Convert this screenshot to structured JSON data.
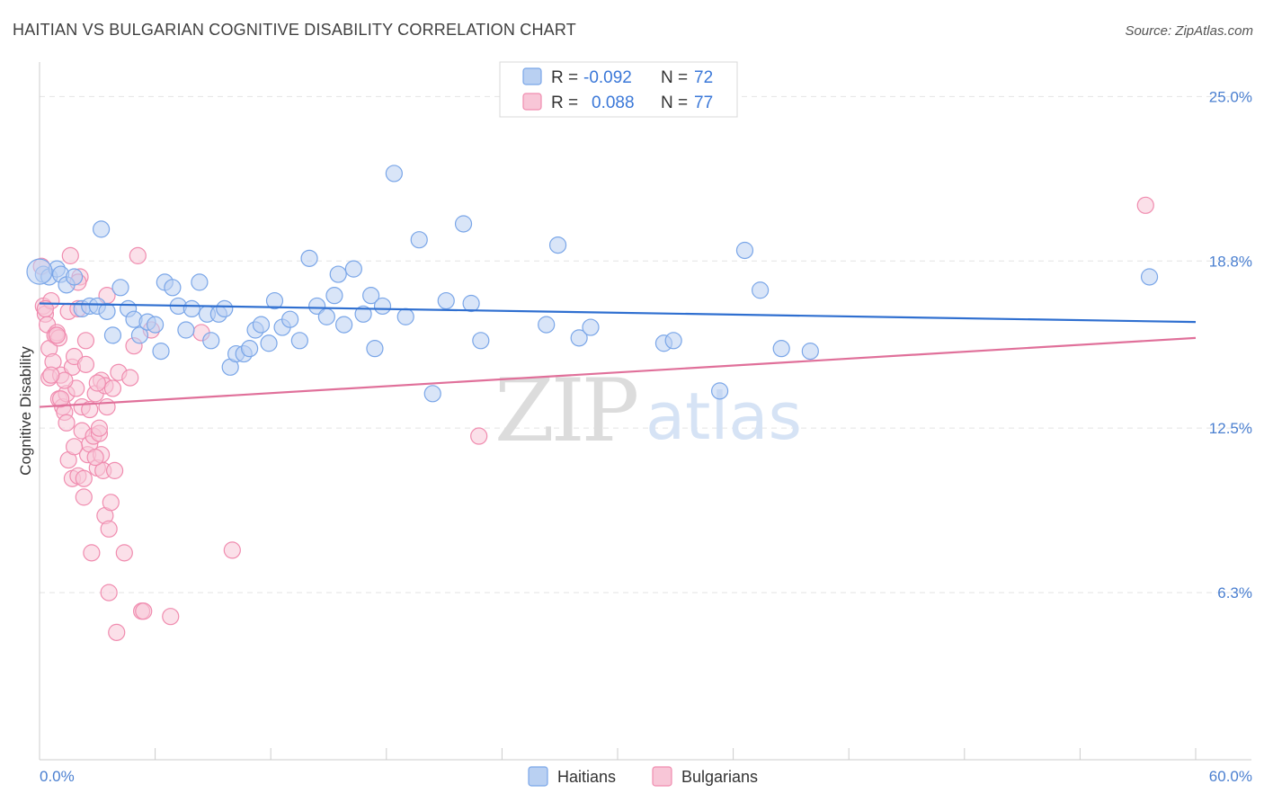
{
  "header": {
    "title": "HAITIAN VS BULGARIAN COGNITIVE DISABILITY CORRELATION CHART",
    "source": "Source: ZipAtlas.com"
  },
  "watermark": {
    "zip": "ZIP",
    "atlas": "atlas"
  },
  "colors": {
    "haitians": "#7aa6e8",
    "haitians_fill": "#b9d0f2",
    "haitians_line": "#2f6fd0",
    "bulgarians": "#f08caf",
    "bulgarians_fill": "#f8c6d7",
    "bulgarians_line": "#e0709a",
    "axis_text": "#4a7fd0",
    "grid": "#e4e4e4"
  },
  "legend": {
    "rows": [
      {
        "r_label": "R =",
        "r_value": "-0.092",
        "n_label": "N =",
        "n_value": "72",
        "series": "haitians"
      },
      {
        "r_label": "R =",
        "r_value": "0.088",
        "n_label": "N =",
        "n_value": "77",
        "series": "bulgarians"
      }
    ]
  },
  "bottom_legend": [
    {
      "label": "Haitians",
      "series": "haitians"
    },
    {
      "label": "Bulgarians",
      "series": "bulgarians"
    }
  ],
  "chart_data": {
    "type": "scatter",
    "title": "HAITIAN VS BULGARIAN COGNITIVE DISABILITY CORRELATION CHART",
    "xlabel": "",
    "ylabel": "Cognitive Disability",
    "xlim": [
      0,
      60
    ],
    "ylim": [
      0,
      26.3
    ],
    "x_tick_labels": [
      "0.0%",
      "60.0%"
    ],
    "y_ticks": [
      6.3,
      12.5,
      18.8,
      25.0
    ],
    "y_tick_labels": [
      "6.3%",
      "12.5%",
      "18.8%",
      "25.0%"
    ],
    "grid": true,
    "legend_position": "top-center",
    "series": [
      {
        "name": "Haitians",
        "trend": {
          "x": [
            0,
            60
          ],
          "y": [
            17.2,
            16.5
          ]
        },
        "points": [
          [
            0.2,
            18.3
          ],
          [
            0.5,
            18.2
          ],
          [
            0.9,
            18.5
          ],
          [
            1.1,
            18.3
          ],
          [
            1.4,
            17.9
          ],
          [
            1.8,
            18.2
          ],
          [
            2.2,
            17.0
          ],
          [
            2.6,
            17.1
          ],
          [
            3.0,
            17.1
          ],
          [
            3.2,
            20.0
          ],
          [
            3.5,
            16.9
          ],
          [
            3.8,
            16.0
          ],
          [
            4.2,
            17.8
          ],
          [
            4.6,
            17.0
          ],
          [
            4.9,
            16.6
          ],
          [
            5.2,
            16.0
          ],
          [
            5.6,
            16.5
          ],
          [
            6.0,
            16.4
          ],
          [
            6.3,
            15.4
          ],
          [
            6.5,
            18.0
          ],
          [
            6.9,
            17.8
          ],
          [
            7.2,
            17.1
          ],
          [
            7.6,
            16.2
          ],
          [
            7.9,
            17.0
          ],
          [
            8.3,
            18.0
          ],
          [
            8.7,
            16.8
          ],
          [
            8.9,
            15.8
          ],
          [
            9.3,
            16.8
          ],
          [
            9.6,
            17.0
          ],
          [
            9.9,
            14.8
          ],
          [
            10.2,
            15.3
          ],
          [
            10.6,
            15.3
          ],
          [
            10.9,
            15.5
          ],
          [
            11.2,
            16.2
          ],
          [
            11.5,
            16.4
          ],
          [
            11.9,
            15.7
          ],
          [
            12.2,
            17.3
          ],
          [
            12.6,
            16.3
          ],
          [
            13.0,
            16.6
          ],
          [
            13.5,
            15.8
          ],
          [
            14.0,
            18.9
          ],
          [
            14.4,
            17.1
          ],
          [
            14.9,
            16.7
          ],
          [
            15.3,
            17.5
          ],
          [
            15.5,
            18.3
          ],
          [
            15.8,
            16.4
          ],
          [
            16.3,
            18.5
          ],
          [
            16.8,
            16.8
          ],
          [
            17.2,
            17.5
          ],
          [
            17.4,
            15.5
          ],
          [
            17.8,
            17.1
          ],
          [
            18.4,
            22.1
          ],
          [
            19.0,
            16.7
          ],
          [
            19.7,
            19.6
          ],
          [
            20.4,
            13.8
          ],
          [
            21.1,
            17.3
          ],
          [
            22.0,
            20.2
          ],
          [
            22.4,
            17.2
          ],
          [
            22.9,
            15.8
          ],
          [
            26.3,
            16.4
          ],
          [
            26.9,
            19.4
          ],
          [
            28.0,
            15.9
          ],
          [
            28.6,
            16.3
          ],
          [
            32.4,
            15.7
          ],
          [
            32.9,
            15.8
          ],
          [
            35.3,
            13.9
          ],
          [
            36.6,
            19.2
          ],
          [
            37.4,
            17.7
          ],
          [
            38.5,
            15.5
          ],
          [
            40.0,
            15.4
          ],
          [
            57.6,
            18.2
          ],
          [
            0.0,
            18.4
          ]
        ]
      },
      {
        "name": "Bulgarians",
        "trend": {
          "x": [
            0,
            60
          ],
          "y": [
            13.3,
            15.9
          ]
        },
        "points": [
          [
            0.1,
            18.6
          ],
          [
            0.2,
            17.1
          ],
          [
            0.3,
            16.8
          ],
          [
            0.4,
            16.4
          ],
          [
            0.5,
            15.5
          ],
          [
            0.5,
            14.4
          ],
          [
            0.6,
            17.3
          ],
          [
            0.7,
            15.0
          ],
          [
            0.8,
            16.0
          ],
          [
            0.9,
            16.1
          ],
          [
            1.0,
            15.9
          ],
          [
            1.0,
            13.6
          ],
          [
            1.1,
            14.5
          ],
          [
            1.2,
            13.3
          ],
          [
            1.3,
            13.1
          ],
          [
            1.4,
            13.8
          ],
          [
            1.4,
            12.7
          ],
          [
            1.5,
            11.3
          ],
          [
            1.5,
            16.9
          ],
          [
            1.6,
            19.0
          ],
          [
            1.7,
            14.8
          ],
          [
            1.7,
            10.6
          ],
          [
            1.8,
            15.2
          ],
          [
            1.9,
            14.0
          ],
          [
            2.0,
            17.0
          ],
          [
            2.0,
            10.7
          ],
          [
            2.1,
            18.2
          ],
          [
            2.2,
            13.3
          ],
          [
            2.2,
            12.4
          ],
          [
            2.3,
            10.6
          ],
          [
            2.3,
            9.9
          ],
          [
            2.4,
            14.9
          ],
          [
            2.4,
            15.8
          ],
          [
            2.5,
            11.5
          ],
          [
            2.6,
            11.9
          ],
          [
            2.6,
            13.2
          ],
          [
            2.7,
            7.8
          ],
          [
            2.8,
            12.2
          ],
          [
            2.9,
            13.8
          ],
          [
            3.0,
            11.0
          ],
          [
            3.1,
            12.3
          ],
          [
            3.1,
            12.5
          ],
          [
            3.2,
            11.5
          ],
          [
            3.2,
            14.3
          ],
          [
            3.3,
            10.9
          ],
          [
            3.4,
            9.2
          ],
          [
            3.4,
            14.1
          ],
          [
            3.5,
            17.5
          ],
          [
            3.5,
            13.3
          ],
          [
            3.6,
            8.7
          ],
          [
            3.6,
            6.3
          ],
          [
            3.7,
            9.7
          ],
          [
            3.8,
            14.0
          ],
          [
            3.9,
            10.9
          ],
          [
            4.0,
            4.8
          ],
          [
            4.1,
            14.6
          ],
          [
            4.4,
            7.8
          ],
          [
            4.7,
            14.4
          ],
          [
            4.9,
            15.6
          ],
          [
            5.1,
            19.0
          ],
          [
            5.3,
            5.6
          ],
          [
            5.4,
            5.6
          ],
          [
            5.8,
            16.2
          ],
          [
            6.8,
            5.4
          ],
          [
            8.4,
            16.1
          ],
          [
            10.0,
            7.9
          ],
          [
            22.8,
            12.2
          ],
          [
            57.4,
            20.9
          ],
          [
            0.9,
            16.0
          ],
          [
            1.3,
            14.3
          ],
          [
            0.3,
            17.0
          ],
          [
            2.0,
            18.0
          ],
          [
            0.6,
            14.5
          ],
          [
            1.8,
            11.8
          ],
          [
            2.9,
            11.4
          ],
          [
            3.0,
            14.2
          ],
          [
            1.1,
            13.6
          ]
        ]
      }
    ]
  }
}
